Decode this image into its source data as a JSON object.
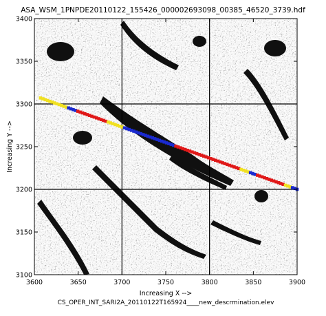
{
  "chart_data": {
    "type": "scatter",
    "title": "ASA_WSM_1PNPDE20110122_155426_000002693098_00385_46520_3739.hdf",
    "xlabel": "Increasing X -->",
    "ylabel": "Increasing Y -->",
    "footer": "CS_OPER_INT_SARI2A_20110122T165924____new_descrmination.elev",
    "xlim": [
      3600,
      3900
    ],
    "ylim": [
      3100,
      3400
    ],
    "x_ticks": [
      "3600",
      "3650",
      "3700",
      "3750",
      "3800",
      "3850",
      "3900"
    ],
    "y_ticks": [
      "3100",
      "3150",
      "3200",
      "3250",
      "3300",
      "3350",
      "3400"
    ],
    "grid": true,
    "track": {
      "start": [
        3607,
        3307
      ],
      "end": [
        3900,
        3200
      ],
      "segments": [
        {
          "color": "#f0e020",
          "from": 0.0,
          "to": 0.1
        },
        {
          "color": "#1a2ad0",
          "from": 0.1,
          "to": 0.14
        },
        {
          "color": "#e01818",
          "from": 0.14,
          "to": 0.26
        },
        {
          "color": "#f0e020",
          "from": 0.26,
          "to": 0.32
        },
        {
          "color": "#1a2ad0",
          "from": 0.32,
          "to": 0.52
        },
        {
          "color": "#e01818",
          "from": 0.52,
          "to": 0.78
        },
        {
          "color": "#f0e020",
          "from": 0.78,
          "to": 0.81
        },
        {
          "color": "#1a2ad0",
          "from": 0.81,
          "to": 0.84
        },
        {
          "color": "#e01818",
          "from": 0.84,
          "to": 0.95
        },
        {
          "color": "#f0e020",
          "from": 0.95,
          "to": 0.98
        },
        {
          "color": "#1a2ad0",
          "from": 0.98,
          "to": 1.0
        }
      ]
    }
  }
}
